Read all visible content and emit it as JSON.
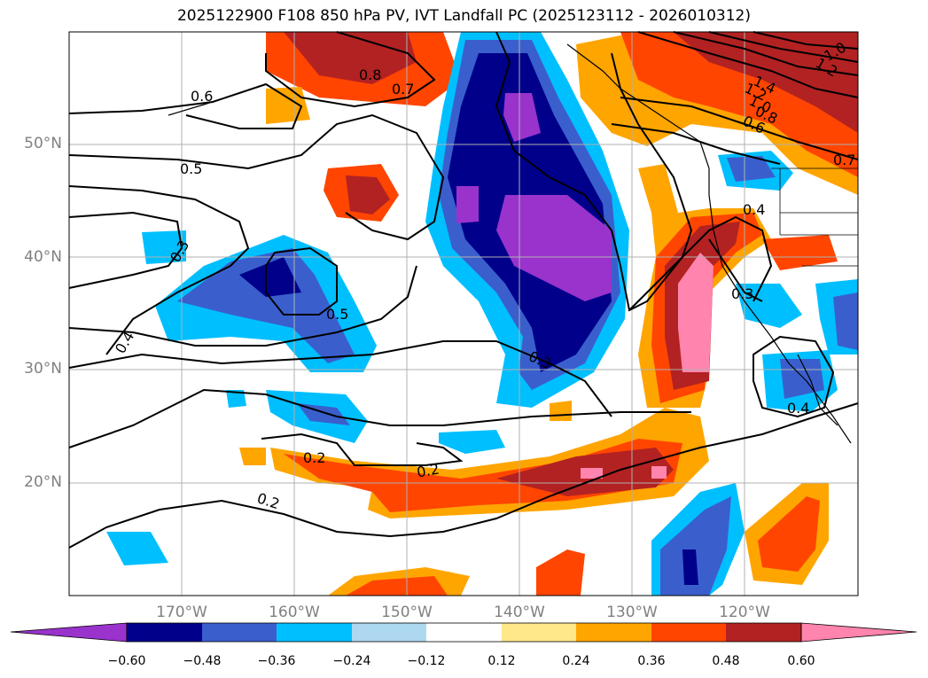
{
  "title": "2025122900 F108 850 hPa PV, IVT Landfall PC (2025123112 - 2026010312)",
  "map": {
    "lat_labels": [
      "50°N",
      "40°N",
      "30°N",
      "20°N"
    ],
    "lon_labels": [
      "170°W",
      "160°W",
      "150°W",
      "140°W",
      "130°W",
      "120°W"
    ],
    "contour_labels": [
      "0.6",
      "0.5",
      "0.5",
      "0.3",
      "0.4",
      "0.3",
      "0.2",
      "0.2",
      "0.2",
      "0.4",
      "0.3",
      "0.4",
      "0.7",
      "0.8",
      "1.4",
      "1.2",
      "1.0",
      "0.8",
      "0.6",
      "1.0",
      "1.2",
      "0.7"
    ]
  },
  "colorbar": {
    "colors": [
      "#9933cc",
      "#00008b",
      "#3a5fcd",
      "#00bfff",
      "#add8f0",
      "#ffffff",
      "#ffe88a",
      "#ffa500",
      "#ff4500",
      "#b22222",
      "#ff85ae"
    ],
    "tick_labels": [
      "−0.60",
      "−0.48",
      "−0.36",
      "−0.24",
      "−0.12",
      "0.12",
      "0.24",
      "0.36",
      "0.48",
      "0.60"
    ]
  }
}
